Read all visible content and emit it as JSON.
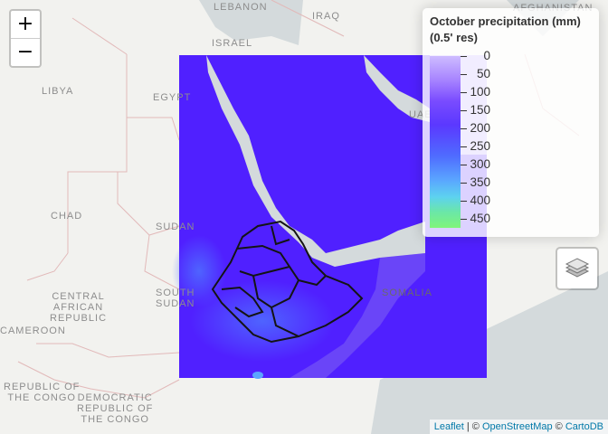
{
  "map": {
    "place_labels": [
      {
        "id": "lebanon",
        "text": "LEBANON"
      },
      {
        "id": "iraq",
        "text": "IRAQ"
      },
      {
        "id": "afghanistan",
        "text": "AFGHANISTAN"
      },
      {
        "id": "israel",
        "text": "ISRAEL"
      },
      {
        "id": "libya",
        "text": "LIBYA"
      },
      {
        "id": "egypt",
        "text": "EGYPT"
      },
      {
        "id": "chad",
        "text": "CHAD"
      },
      {
        "id": "sudan",
        "text": "SUDAN"
      },
      {
        "id": "uae",
        "text": "UAE"
      },
      {
        "id": "car",
        "lines": [
          "CENTRAL",
          "AFRICAN",
          "REPUBLIC"
        ]
      },
      {
        "id": "south-sudan",
        "lines": [
          "SOUTH",
          "SUDAN"
        ]
      },
      {
        "id": "cameroon",
        "text": "CAMEROON"
      },
      {
        "id": "somalia",
        "text": "SOMALIA"
      },
      {
        "id": "the-congo",
        "lines": [
          "REPUBLIC OF",
          "THE CONGO"
        ]
      },
      {
        "id": "drc",
        "lines": [
          "DEMOCRATIC",
          "REPUBLIC OF",
          "THE CONGO"
        ]
      }
    ],
    "raster_layer": {
      "variable": "October precipitation",
      "colors": [
        "#cdbbff",
        "#7a4cff",
        "#4f6bff",
        "#5aa5ff",
        "#6be7a6",
        "#7ff57a"
      ]
    }
  },
  "controls": {
    "zoom_in": "+",
    "zoom_out": "−",
    "layers_icon": "layers-icon"
  },
  "legend": {
    "title_line1": "October precipitation (mm)",
    "title_line2": "(0.5' res)",
    "ticks": [
      "0",
      "50",
      "100",
      "150",
      "200",
      "250",
      "300",
      "350",
      "400",
      "450"
    ]
  },
  "attribution": {
    "leaflet": "Leaflet",
    "sep1": " | © ",
    "osm": "OpenStreetMap",
    "sep2": " © ",
    "carto": "CartoDB"
  }
}
